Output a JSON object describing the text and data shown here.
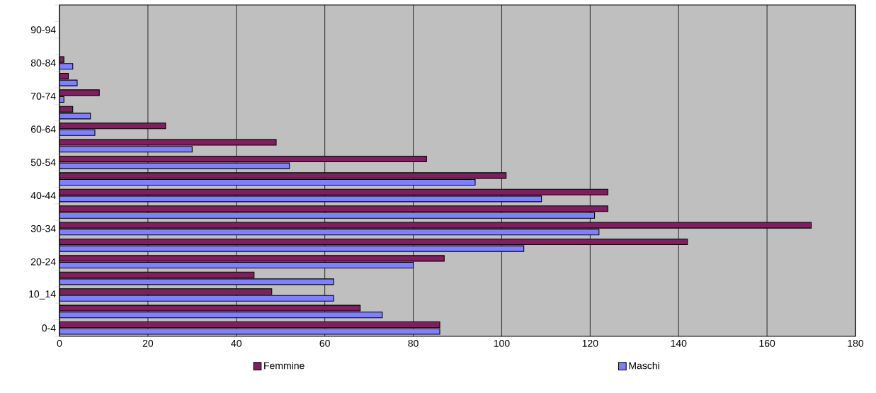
{
  "chart_data": {
    "type": "bar",
    "orientation": "horizontal",
    "categories": [
      null,
      "90-94",
      null,
      "80-84",
      null,
      "70-74",
      null,
      "60-64",
      null,
      "50-54",
      null,
      "40-44",
      null,
      "30-34",
      null,
      "20-24",
      null,
      "10_14",
      null,
      "0-4"
    ],
    "series": [
      {
        "name": "Femmine",
        "color": "#7f1f5f",
        "values": [
          null,
          null,
          null,
          1,
          2,
          9,
          3,
          24,
          49,
          83,
          101,
          124,
          124,
          170,
          142,
          87,
          44,
          48,
          68,
          86
        ]
      },
      {
        "name": "Maschi",
        "color": "#8080ff",
        "values": [
          null,
          null,
          null,
          3,
          4,
          1,
          7,
          8,
          30,
          52,
          94,
          109,
          121,
          122,
          105,
          80,
          62,
          62,
          73,
          86
        ]
      }
    ],
    "xlim": [
      0,
      180
    ],
    "xticks": [
      0,
      20,
      40,
      60,
      80,
      100,
      120,
      140,
      160,
      180
    ],
    "grid": "x",
    "legend": "bottom"
  }
}
